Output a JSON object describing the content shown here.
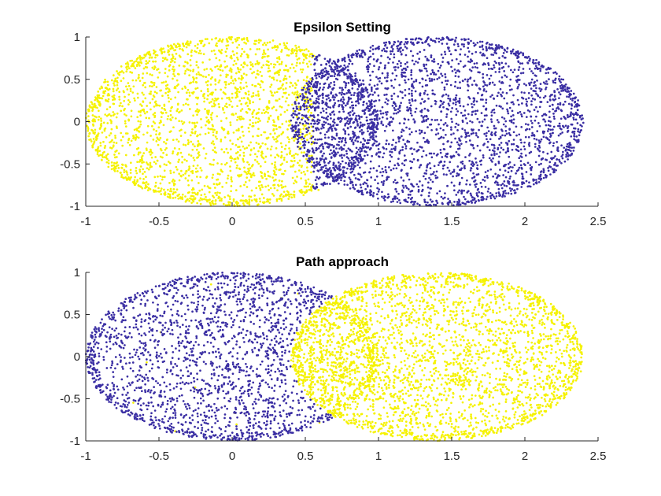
{
  "chart_data": [
    {
      "type": "scatter",
      "title": "Epsilon Setting",
      "xlabel": "",
      "ylabel": "",
      "xlim": [
        -1,
        2.5
      ],
      "ylim": [
        -1,
        1
      ],
      "xticks": [
        -1,
        -0.5,
        0,
        0.5,
        1,
        1.5,
        2,
        2.5
      ],
      "xtick_labels": [
        "-1",
        "-0.5",
        "0",
        "0.5",
        "1",
        "1.5",
        "2",
        "2.5"
      ],
      "yticks": [
        -1,
        -0.5,
        0,
        0.5,
        1
      ],
      "ytick_labels": [
        "-1",
        "-0.5",
        "0",
        "0.5",
        "1"
      ],
      "grid": false,
      "legend": "none",
      "series": [
        {
          "color": "#f5f200",
          "description_of_points": "ellipse centred at (0,0), rx 1, ry 1, minus points past the boundary x≈0.55",
          "ellipse": {
            "cx": 0,
            "cy": 0,
            "rx": 1,
            "ry": 1
          },
          "clip": "x <= ~0.55 (with a few points up to ~0.62)",
          "approx_points": 2500
        },
        {
          "color": "#3a2ea3",
          "ellipse": {
            "cx": 1.4,
            "cy": 0,
            "rx": 1,
            "ry": 1
          },
          "extra": "also includes the part of the left ellipse with x > ~0.55",
          "approx_points": 2800
        }
      ]
    },
    {
      "type": "scatter",
      "title": "Path approach",
      "xlabel": "",
      "ylabel": "",
      "xlim": [
        -1,
        2.5
      ],
      "ylim": [
        -1,
        1
      ],
      "xticks": [
        -1,
        -0.5,
        0,
        0.5,
        1,
        1.5,
        2,
        2.5
      ],
      "xtick_labels": [
        "-1",
        "-0.5",
        "0",
        "0.5",
        "1",
        "1.5",
        "2",
        "2.5"
      ],
      "yticks": [
        -1,
        -0.5,
        0,
        0.5,
        1
      ],
      "ytick_labels": [
        "-1",
        "-0.5",
        "0",
        "0.5",
        "1"
      ],
      "grid": false,
      "legend": "none",
      "series": [
        {
          "color": "#3a2ea3",
          "ellipse": {
            "cx": 0,
            "cy": 0,
            "rx": 1,
            "ry": 1
          },
          "extra": "left ellipse points outside the right ellipse; a few stray yellow points mixed in",
          "approx_points": 2300
        },
        {
          "color": "#f5f200",
          "ellipse": {
            "cx": 1.4,
            "cy": 0,
            "rx": 1,
            "ry": 1
          },
          "extra": "also includes the lens-shaped overlap region of the two ellipses",
          "approx_points": 3000
        }
      ]
    }
  ]
}
